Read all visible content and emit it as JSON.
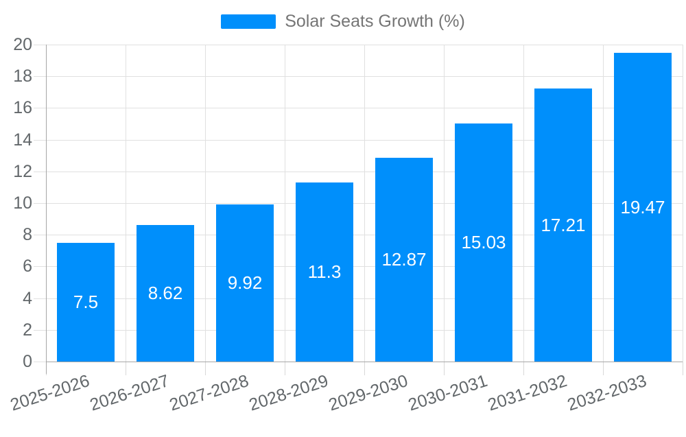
{
  "legend": {
    "label": "Solar Seats Growth (%)"
  },
  "colors": {
    "bar": "#008FFB",
    "grid": "#e0e0e0",
    "tick": "#d8d8d8",
    "axis": "#a6a6a6",
    "axis_label": "#62676a",
    "legend_text": "#757575",
    "value_label": "#ffffff",
    "background": "#ffffff"
  },
  "chart_data": {
    "type": "bar",
    "title": "Solar Seats Growth (%)",
    "categories": [
      "2025-2026",
      "2026-2027",
      "2027-2028",
      "2028-2029",
      "2029-2030",
      "2030-2031",
      "2031-2032",
      "2032-2033"
    ],
    "series": [
      {
        "name": "Solar Seats Growth (%)",
        "values": [
          7.5,
          8.62,
          9.92,
          11.3,
          12.87,
          15.03,
          17.21,
          19.47
        ]
      }
    ],
    "value_labels": [
      "7.5",
      "8.62",
      "9.92",
      "11.3",
      "12.87",
      "15.03",
      "17.21",
      "19.47"
    ],
    "xlabel": "",
    "ylabel": "",
    "ylim": [
      0,
      20
    ],
    "ytick_step": 2,
    "ytick_labels": [
      "0",
      "2",
      "4",
      "6",
      "8",
      "10",
      "12",
      "14",
      "16",
      "18",
      "20"
    ],
    "grid": true,
    "legend_position": "top",
    "x_label_rotation": -18
  }
}
